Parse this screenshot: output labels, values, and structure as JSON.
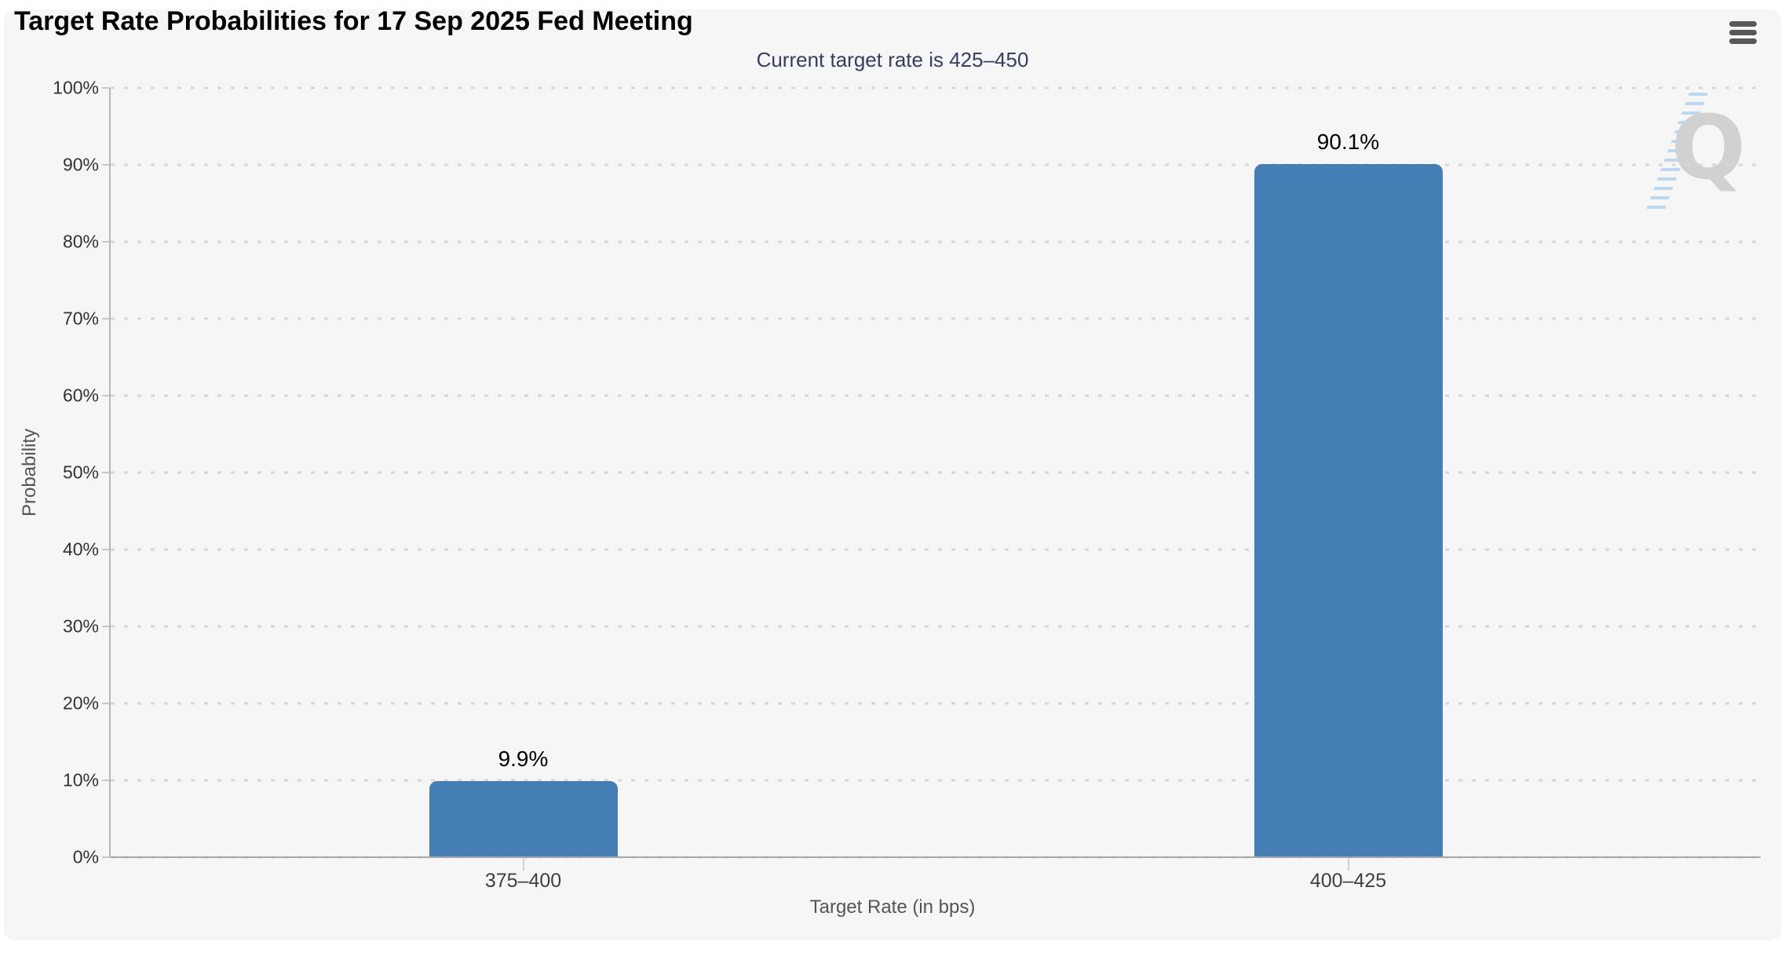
{
  "page": {
    "background": "#ffffff",
    "panel_background": "#f6f6f6"
  },
  "header": {
    "menu_icon": "hamburger-menu"
  },
  "chart_data": {
    "type": "bar",
    "title": "Target Rate Probabilities for 17 Sep 2025 Fed Meeting",
    "subtitle": "Current target rate is 425–450",
    "xlabel": "Target Rate (in bps)",
    "ylabel": "Probability",
    "categories": [
      "375–400",
      "400–425"
    ],
    "values": [
      9.9,
      90.1
    ],
    "value_labels": [
      "9.9%",
      "90.1%"
    ],
    "ylim": [
      0,
      100
    ],
    "ytick_step": 10,
    "ytick_labels": [
      "0%",
      "10%",
      "20%",
      "30%",
      "40%",
      "50%",
      "60%",
      "70%",
      "80%",
      "90%",
      "100%"
    ],
    "grid": "horizontal-dotted",
    "legend": "none",
    "bar_color": "#447EB5",
    "grid_color": "#d7d7d7",
    "axis_color": "#a8a8a8",
    "subtitle_color": "#333F5E",
    "watermark_letter": "Q",
    "watermark_stripe_color": "#8fc0e8"
  }
}
